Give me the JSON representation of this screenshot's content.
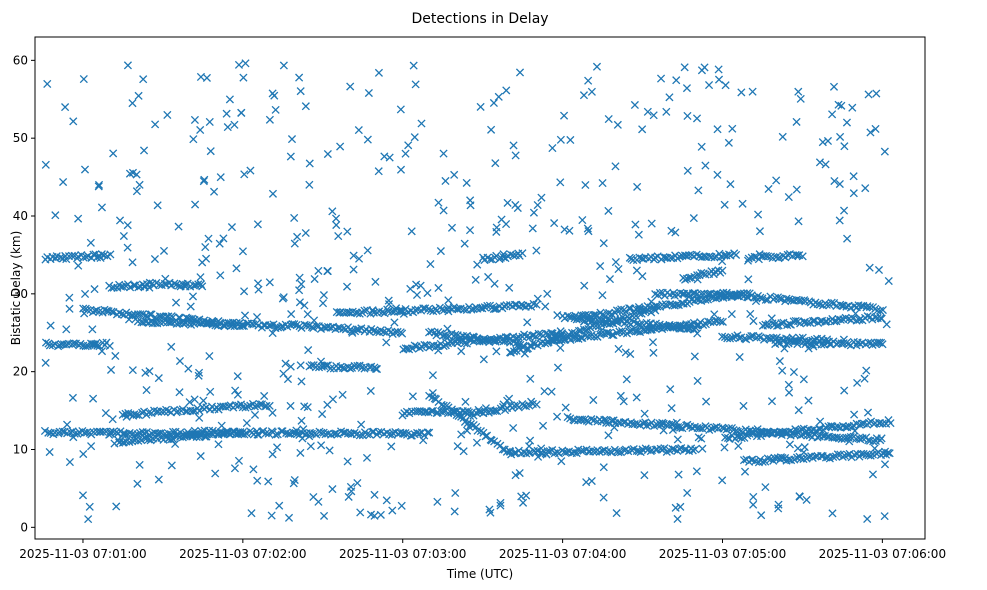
{
  "chart_data": {
    "type": "scatter",
    "title": "Detections in Delay",
    "xlabel": "Time (UTC)",
    "ylabel": "Bistatic Delay (km)",
    "marker": "x",
    "color": "#1f77b4",
    "xlim_seconds": [
      -18,
      316
    ],
    "ylim": [
      -1.5,
      63
    ],
    "x_origin": "2025-11-03 07:01:00",
    "x_ticks": [
      {
        "seconds": 0,
        "label": "2025-11-03 07:01:00"
      },
      {
        "seconds": 60,
        "label": "2025-11-03 07:02:00"
      },
      {
        "seconds": 120,
        "label": "2025-11-03 07:03:00"
      },
      {
        "seconds": 180,
        "label": "2025-11-03 07:04:00"
      },
      {
        "seconds": 240,
        "label": "2025-11-03 07:05:00"
      },
      {
        "seconds": 300,
        "label": "2025-11-03 07:06:00"
      }
    ],
    "y_ticks": [
      0,
      10,
      20,
      30,
      40,
      50,
      60
    ],
    "x_range_seconds": [
      -14,
      303
    ],
    "tracks": [
      {
        "t_start": -14,
        "t_end": 44,
        "delay_start": 12.2,
        "delay_end": 12.0
      },
      {
        "t_start": 12,
        "t_end": 60,
        "delay_start": 11.0,
        "delay_end": 12.2
      },
      {
        "t_start": 40,
        "t_end": 130,
        "delay_start": 12.2,
        "delay_end": 12.0
      },
      {
        "t_start": 130,
        "t_end": 160,
        "delay_start": 17.0,
        "delay_end": 9.5
      },
      {
        "t_start": 160,
        "t_end": 230,
        "delay_start": 9.6,
        "delay_end": 10.0
      },
      {
        "t_start": 182,
        "t_end": 300,
        "delay_start": 14.0,
        "delay_end": 11.2
      },
      {
        "t_start": 241,
        "t_end": 303,
        "delay_start": 11.5,
        "delay_end": 13.6
      },
      {
        "t_start": 248,
        "t_end": 303,
        "delay_start": 8.5,
        "delay_end": 9.5
      },
      {
        "t_start": 15,
        "t_end": 70,
        "delay_start": 14.5,
        "delay_end": 15.8
      },
      {
        "t_start": 120,
        "t_end": 145,
        "delay_start": 14.6,
        "delay_end": 15.0
      },
      {
        "t_start": 145,
        "t_end": 170,
        "delay_start": 14.5,
        "delay_end": 16.0
      },
      {
        "t_start": -14,
        "t_end": 10,
        "delay_start": 34.5,
        "delay_end": 35.0
      },
      {
        "t_start": 150,
        "t_end": 165,
        "delay_start": 34.5,
        "delay_end": 35.0
      },
      {
        "t_start": 205,
        "t_end": 245,
        "delay_start": 34.5,
        "delay_end": 35.0
      },
      {
        "t_start": 250,
        "t_end": 270,
        "delay_start": 34.5,
        "delay_end": 35.0
      },
      {
        "t_start": -14,
        "t_end": 10,
        "delay_start": 23.5,
        "delay_end": 23.5
      },
      {
        "t_start": 0,
        "t_end": 60,
        "delay_start": 28.0,
        "delay_end": 26.0
      },
      {
        "t_start": 20,
        "t_end": 75,
        "delay_start": 26.5,
        "delay_end": 25.8
      },
      {
        "t_start": 25,
        "t_end": 45,
        "delay_start": 31.3,
        "delay_end": 31.0
      },
      {
        "t_start": 10,
        "t_end": 25,
        "delay_start": 31.0,
        "delay_end": 31.0
      },
      {
        "t_start": 75,
        "t_end": 120,
        "delay_start": 26.0,
        "delay_end": 25.0
      },
      {
        "t_start": 85,
        "t_end": 110,
        "delay_start": 20.6,
        "delay_end": 20.6
      },
      {
        "t_start": 95,
        "t_end": 170,
        "delay_start": 27.5,
        "delay_end": 28.5
      },
      {
        "t_start": 120,
        "t_end": 180,
        "delay_start": 23.0,
        "delay_end": 25.0
      },
      {
        "t_start": 130,
        "t_end": 165,
        "delay_start": 25.0,
        "delay_end": 23.5
      },
      {
        "t_start": 160,
        "t_end": 215,
        "delay_start": 22.5,
        "delay_end": 28.0
      },
      {
        "t_start": 175,
        "t_end": 240,
        "delay_start": 24.0,
        "delay_end": 26.5
      },
      {
        "t_start": 180,
        "t_end": 230,
        "delay_start": 27.0,
        "delay_end": 25.5
      },
      {
        "t_start": 185,
        "t_end": 250,
        "delay_start": 27.0,
        "delay_end": 30.0
      },
      {
        "t_start": 215,
        "t_end": 245,
        "delay_start": 30.0,
        "delay_end": 30.0
      },
      {
        "t_start": 240,
        "t_end": 300,
        "delay_start": 30.0,
        "delay_end": 28.0
      },
      {
        "t_start": 240,
        "t_end": 280,
        "delay_start": 24.5,
        "delay_end": 24.0
      },
      {
        "t_start": 255,
        "t_end": 300,
        "delay_start": 26.0,
        "delay_end": 27.0
      },
      {
        "t_start": 260,
        "t_end": 300,
        "delay_start": 23.8,
        "delay_end": 23.5
      },
      {
        "t_start": 225,
        "t_end": 240,
        "delay_start": 32.0,
        "delay_end": 33.0
      }
    ],
    "noise": {
      "count": 620,
      "t_min": -14,
      "t_max": 303,
      "delay_min": 1,
      "delay_max": 60
    }
  }
}
